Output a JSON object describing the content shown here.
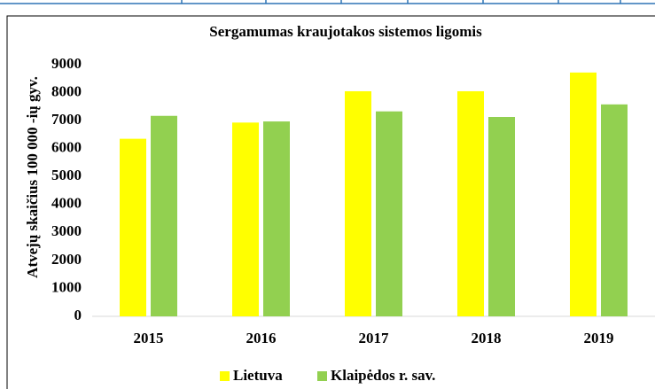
{
  "chart_data": {
    "type": "bar",
    "title": "Sergamumas kraujotakos sistemos ligomis",
    "y_label": "Atvejų skaičius 100 000 -ių gyv.",
    "categories": [
      "2015",
      "2016",
      "2017",
      "2018",
      "2019"
    ],
    "series": [
      {
        "name": "Lietuva",
        "color": "#ffff00",
        "values": [
          6350,
          6930,
          8050,
          8050,
          8720
        ]
      },
      {
        "name": "Klaipėdos r. sav.",
        "color": "#92d050",
        "values": [
          7170,
          6970,
          7330,
          7130,
          7580
        ]
      }
    ],
    "ylim": [
      0,
      9000
    ],
    "yticks": [
      0,
      1000,
      2000,
      3000,
      4000,
      5000,
      6000,
      7000,
      8000,
      9000
    ],
    "grid": false,
    "legend": "bottom"
  }
}
